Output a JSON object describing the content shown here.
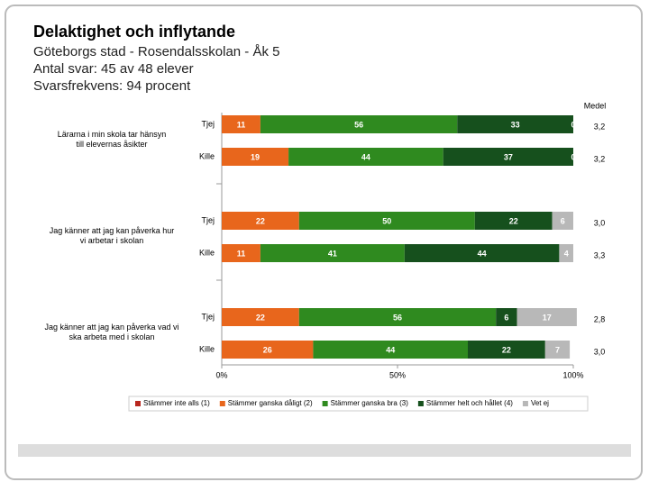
{
  "chart_data": {
    "type": "stacked-bar-horizontal",
    "title": "Delaktighet och inflytande",
    "subtitle": [
      "Göteborgs stad - Rosendalsskolan - Åk 5",
      "Antal svar: 45 av 48 elever",
      "Svarsfrekvens: 94 procent"
    ],
    "groups": [
      "Lärarna i min skola tar hänsyn till elevernas åsikter",
      "Jag känner att jag kan påverka hur vi arbetar i skolan",
      "Jag känner att jag kan påverka vad vi ska arbeta med i skolan"
    ],
    "categories": [
      "Tjej",
      "Kille",
      "Tjej",
      "Kille",
      "Tjej",
      "Kille"
    ],
    "series": [
      {
        "name": "Stämmer inte alls (1)",
        "color": "#b8261e",
        "values": [
          0,
          0,
          0,
          0,
          0,
          0
        ]
      },
      {
        "name": "Stämmer ganska dåligt (2)",
        "color": "#e8661c",
        "values": [
          11,
          19,
          22,
          11,
          22,
          26
        ]
      },
      {
        "name": "Stämmer ganska bra (3)",
        "color": "#2f8a1f",
        "values": [
          56,
          44,
          50,
          41,
          56,
          44
        ]
      },
      {
        "name": "Stämmer helt och hållet (4)",
        "color": "#16501d",
        "values": [
          33,
          37,
          22,
          44,
          6,
          22
        ]
      },
      {
        "name": "Vet ej",
        "color": "#b8b8b8",
        "values": [
          0,
          0,
          6,
          4,
          17,
          7
        ]
      }
    ],
    "medel": {
      "title": "Medel",
      "values": [
        3.2,
        3.2,
        3.0,
        3.3,
        2.8,
        3.0
      ],
      "value_labels": [
        "3,2",
        "3,2",
        "3,0",
        "3,3",
        "2,8",
        "3,0"
      ]
    },
    "xlim": [
      0,
      100
    ],
    "xticks": [
      {
        "value": 0,
        "label": "0%"
      },
      {
        "value": 50,
        "label": "50%"
      },
      {
        "value": 100,
        "label": "100%"
      }
    ]
  }
}
